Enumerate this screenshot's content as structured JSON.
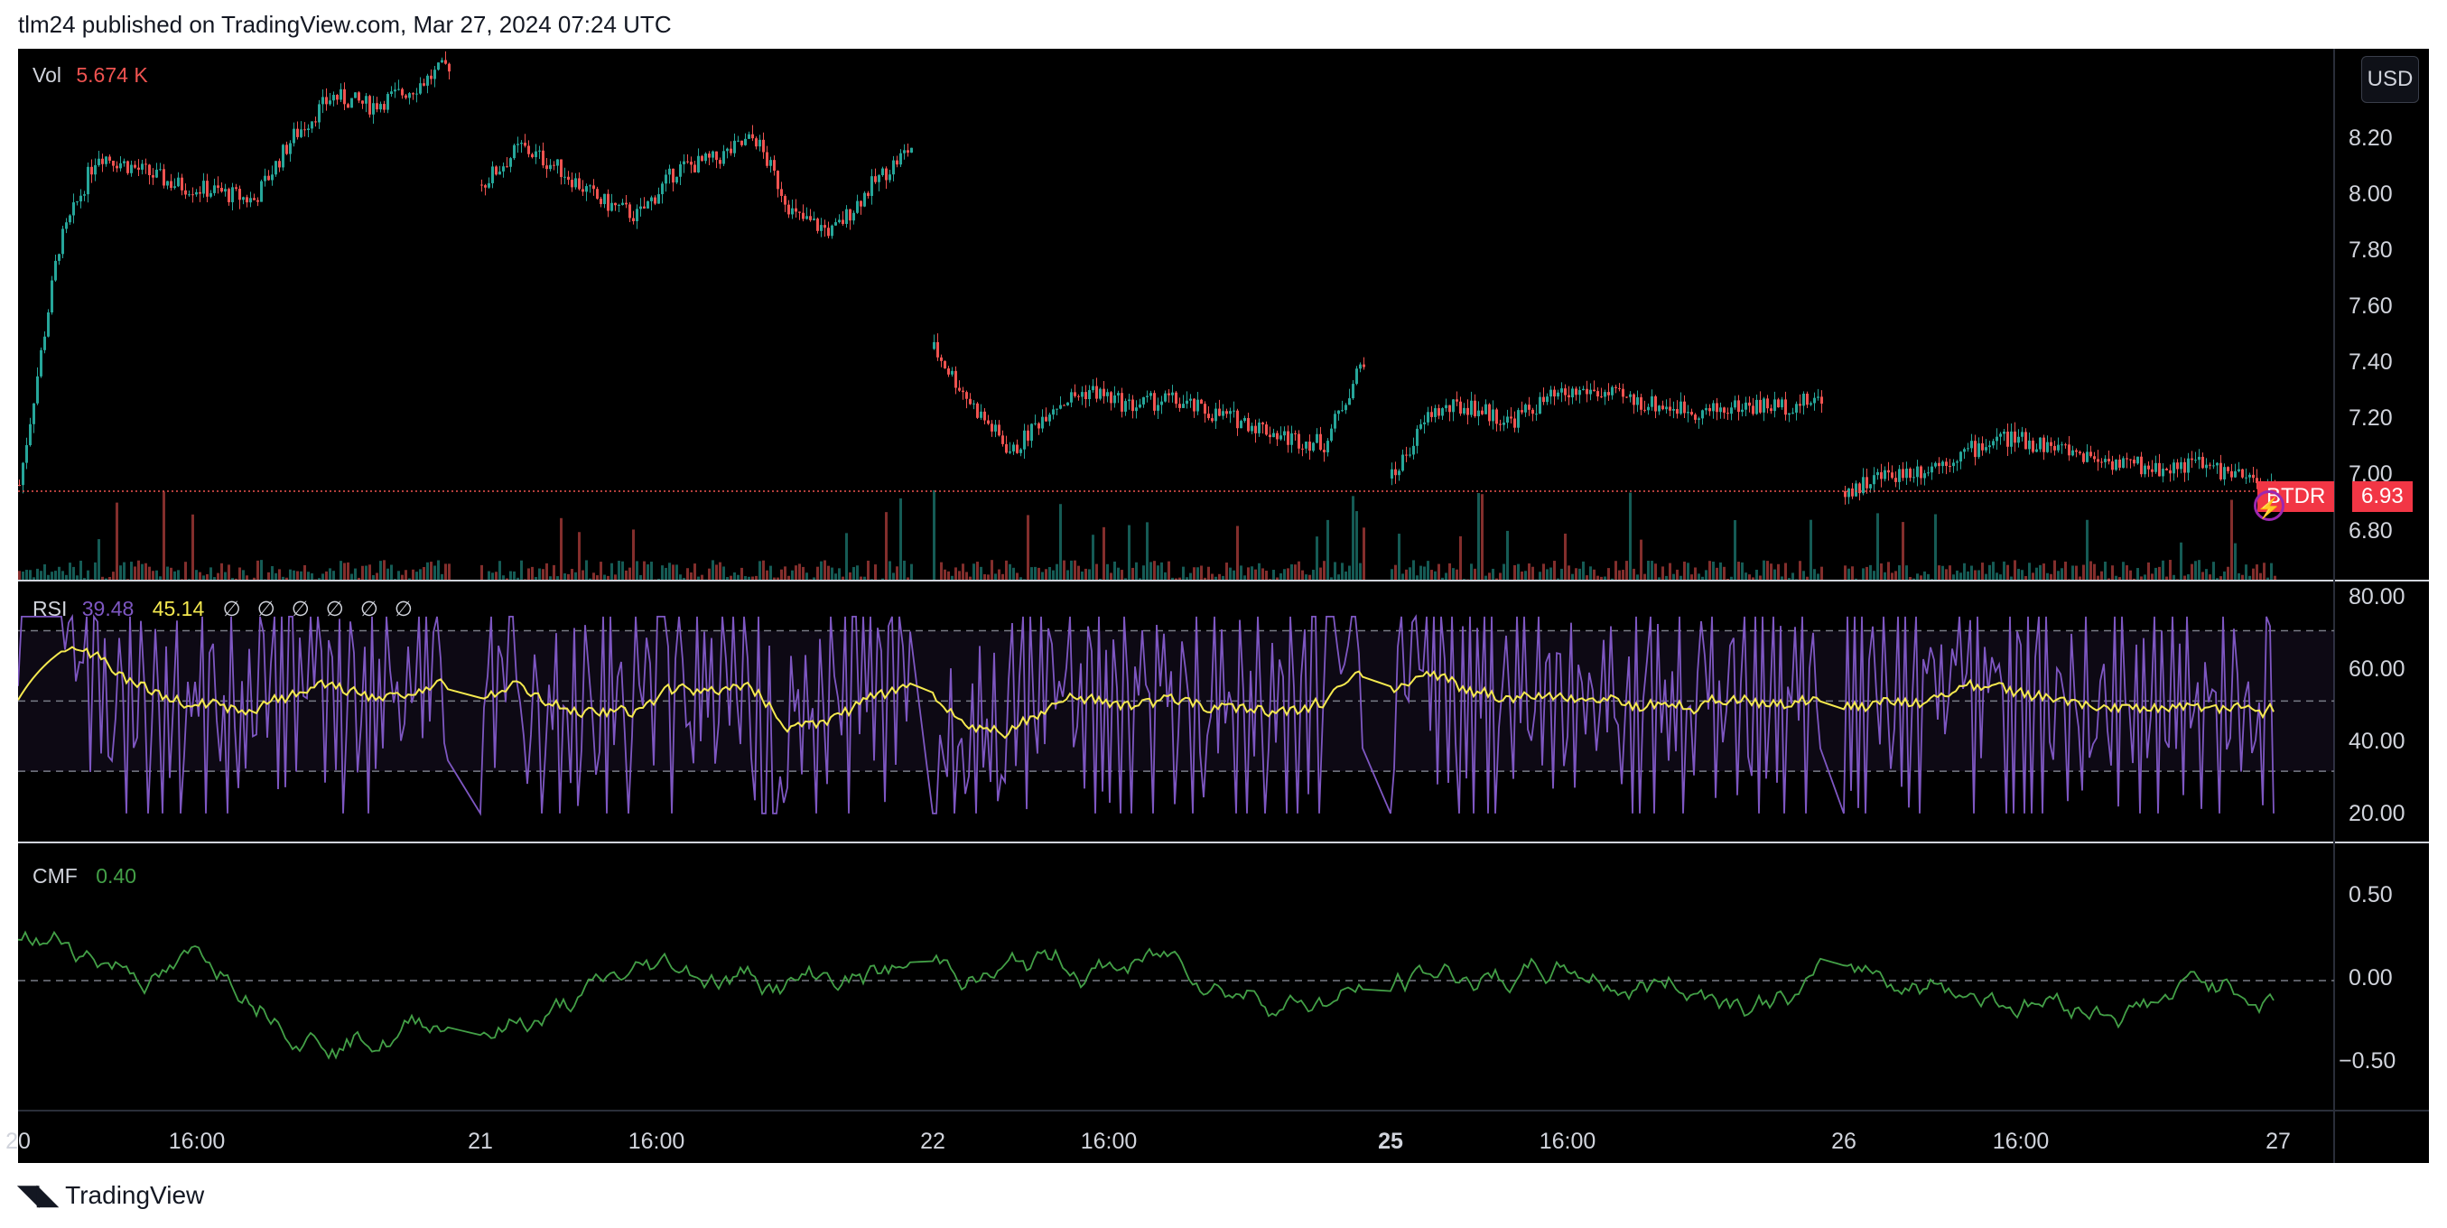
{
  "header": {
    "text": "tlm24 published on TradingView.com, Mar 27, 2024 07:24 UTC"
  },
  "currency_button": "USD",
  "price_pane": {
    "legend_label": "Vol",
    "legend_value": "5.674 K",
    "last_price_tag": {
      "symbol": "BTDR",
      "value": "6.93"
    },
    "y_ticks": [
      "8.20",
      "8.00",
      "7.80",
      "7.60",
      "7.40",
      "7.20",
      "7.00",
      "6.80"
    ]
  },
  "rsi_pane": {
    "label": "RSI",
    "value": "39.48",
    "ma_value": "45.14",
    "na_values": [
      "∅",
      "∅",
      "∅",
      "∅",
      "∅",
      "∅"
    ],
    "y_ticks": [
      "80.00",
      "60.00",
      "40.00",
      "20.00"
    ]
  },
  "cmf_pane": {
    "label": "CMF",
    "value": "0.40",
    "y_ticks": [
      "0.50",
      "0.00",
      "−0.50"
    ]
  },
  "x_axis": {
    "ticks": [
      "20",
      "16:00",
      "21",
      "16:00",
      "22",
      "16:00",
      "25",
      "16:00",
      "26",
      "16:00",
      "27"
    ]
  },
  "footer": {
    "brand": "TradingView",
    "logo": "tradingview-logo"
  },
  "colors": {
    "up": "#26a69a",
    "down": "#ef5350",
    "rsi": "#7e57c2",
    "rsi_ma": "#f5e94f",
    "cmf": "#43a047",
    "price_line": "#ef5350"
  },
  "chart_data": {
    "type": "candlestick",
    "price_range": [
      6.65,
      8.33
    ],
    "sessions": [
      {
        "label": "20",
        "levels": [
          6.95,
          7.7,
          8.0,
          7.95,
          7.9,
          7.88,
          7.85,
          8.05,
          8.18,
          8.15,
          8.2,
          8.28
        ]
      },
      {
        "label": "21",
        "levels": [
          7.9,
          8.02,
          7.95,
          7.85,
          7.8,
          7.95,
          7.98,
          8.05,
          7.8,
          7.75,
          7.9,
          8.02
        ]
      },
      {
        "label": "22",
        "levels": [
          7.38,
          7.2,
          7.05,
          7.2,
          7.25,
          7.2,
          7.22,
          7.18,
          7.15,
          7.1,
          7.08,
          7.35
        ]
      },
      {
        "label": "25",
        "levels": [
          6.97,
          7.18,
          7.2,
          7.15,
          7.22,
          7.25,
          7.22,
          7.2,
          7.18,
          7.2,
          7.2,
          7.22
        ]
      },
      {
        "label": "26",
        "levels": [
          6.93,
          6.98,
          7.0,
          7.05,
          7.1,
          7.08,
          7.05,
          7.02,
          7.0,
          7.02,
          6.98,
          6.93
        ]
      }
    ],
    "rsi_range": [
      10,
      84
    ],
    "rsi_bands": [
      70,
      50,
      30
    ],
    "cmf_range": [
      -0.8,
      0.85
    ]
  }
}
